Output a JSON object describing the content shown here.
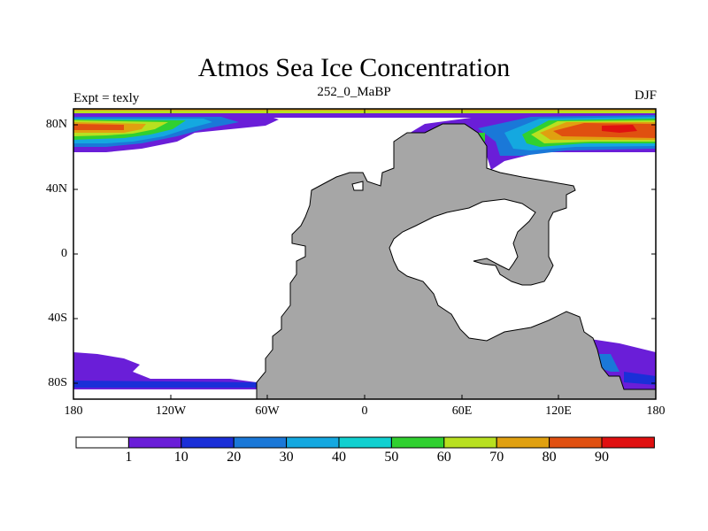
{
  "title": "Atmos Sea Ice Concentration",
  "subtitle_left": "Expt = texly",
  "subtitle_center": "252_0_MaBP",
  "subtitle_right": "DJF",
  "y_ticks": [
    "80N",
    "40N",
    "0",
    "40S",
    "80S"
  ],
  "x_ticks": [
    "180",
    "120W",
    "60W",
    "0",
    "60E",
    "120E",
    "180"
  ],
  "colorbar": {
    "colors": [
      "#ffffff",
      "#6a1ed8",
      "#1a2fd8",
      "#1a78d8",
      "#14a8e0",
      "#10d0d0",
      "#30d030",
      "#b8e020",
      "#e0a010",
      "#e05010",
      "#e01010"
    ],
    "labels": [
      "1",
      "10",
      "20",
      "30",
      "40",
      "50",
      "60",
      "70",
      "80",
      "90"
    ]
  },
  "colors": {
    "land": "#a6a6a6",
    "ocean": "#ffffff",
    "frame": "#000000"
  }
}
